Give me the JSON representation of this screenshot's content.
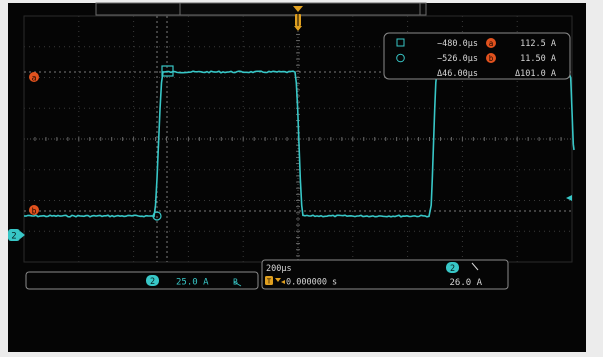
{
  "colors": {
    "trace": "#38c7c7",
    "marker": "#e2521e",
    "trigger": "#e0a020",
    "text": "#d6d6d6",
    "panel": "#8a8a8a"
  },
  "cursor_readout": {
    "cursor_a_time": "−480.0μs",
    "cursor_b_time": "−526.0μs",
    "cursor_a_badge": "a",
    "cursor_b_badge": "b",
    "cursor_a_value": "112.5 A",
    "cursor_b_value": "11.50 A",
    "delta_time": "Δ46.00μs",
    "delta_value": "Δ101.0 A"
  },
  "markers": {
    "a_label": "a",
    "b_label": "b"
  },
  "channel": {
    "number": "2",
    "scale": "25.0 A",
    "bandwidth_icon": "bandwidth-limit-icon"
  },
  "horizontal": {
    "timebase": "200μs",
    "trigger_position": "0.000000 s",
    "trigger_icon": "T"
  },
  "trigger": {
    "channel": "2",
    "slope_icon": "rising-slope-icon",
    "level": "26.0 A"
  }
}
